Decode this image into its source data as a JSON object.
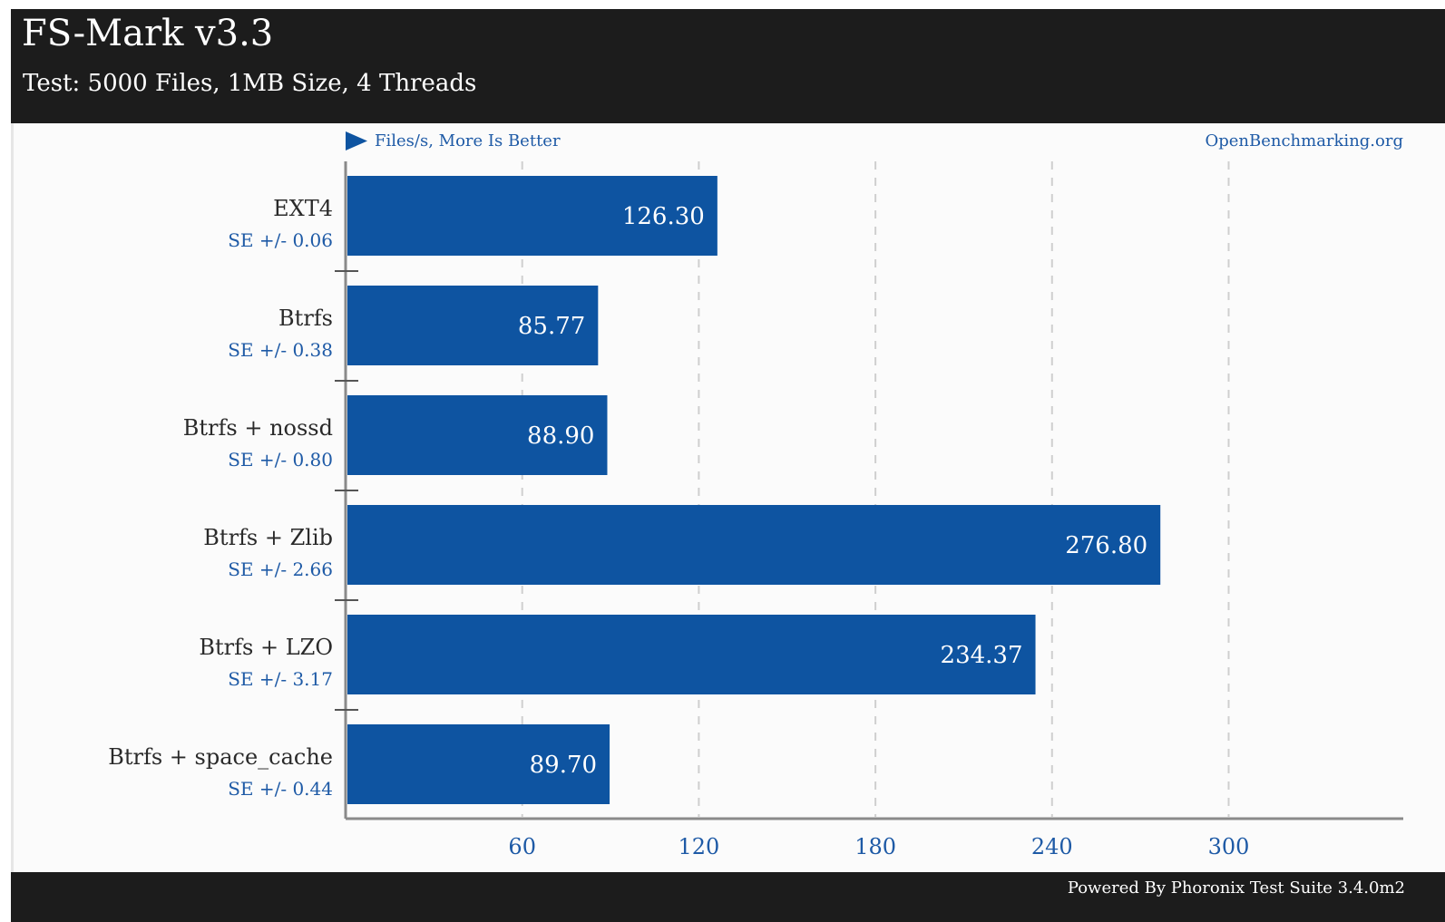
{
  "header": {
    "title": "FS-Mark v3.3",
    "subtitle": "Test: 5000 Files, 1MB Size, 4 Threads"
  },
  "footer": {
    "text": "Powered By Phoronix Test Suite 3.4.0m2"
  },
  "colors": {
    "bar": "#0e54a1",
    "header_bg": "#1c1c1c",
    "accent_text": "#1e5aa6"
  },
  "chart_data": {
    "type": "bar",
    "orientation": "horizontal",
    "title": "FS-Mark v3.3",
    "subtitle": "Test: 5000 Files, 1MB Size, 4 Threads",
    "unit_note": "Files/s, More Is Better",
    "watermark": "OpenBenchmarking.org",
    "categories": [
      "EXT4",
      "Btrfs",
      "Btrfs + nossd",
      "Btrfs + Zlib",
      "Btrfs + LZO",
      "Btrfs + space_cache"
    ],
    "values": [
      126.3,
      85.77,
      88.9,
      276.8,
      234.37,
      89.7
    ],
    "value_labels": [
      "126.30",
      "85.77",
      "88.90",
      "276.80",
      "234.37",
      "89.70"
    ],
    "se_labels": [
      "SE +/- 0.06",
      "SE +/- 0.38",
      "SE +/- 0.80",
      "SE +/- 2.66",
      "SE +/- 3.17",
      "SE +/- 0.44"
    ],
    "xticks": [
      60,
      120,
      180,
      240,
      300
    ],
    "xlim": [
      0,
      360
    ],
    "grid": true,
    "legend": "none"
  }
}
